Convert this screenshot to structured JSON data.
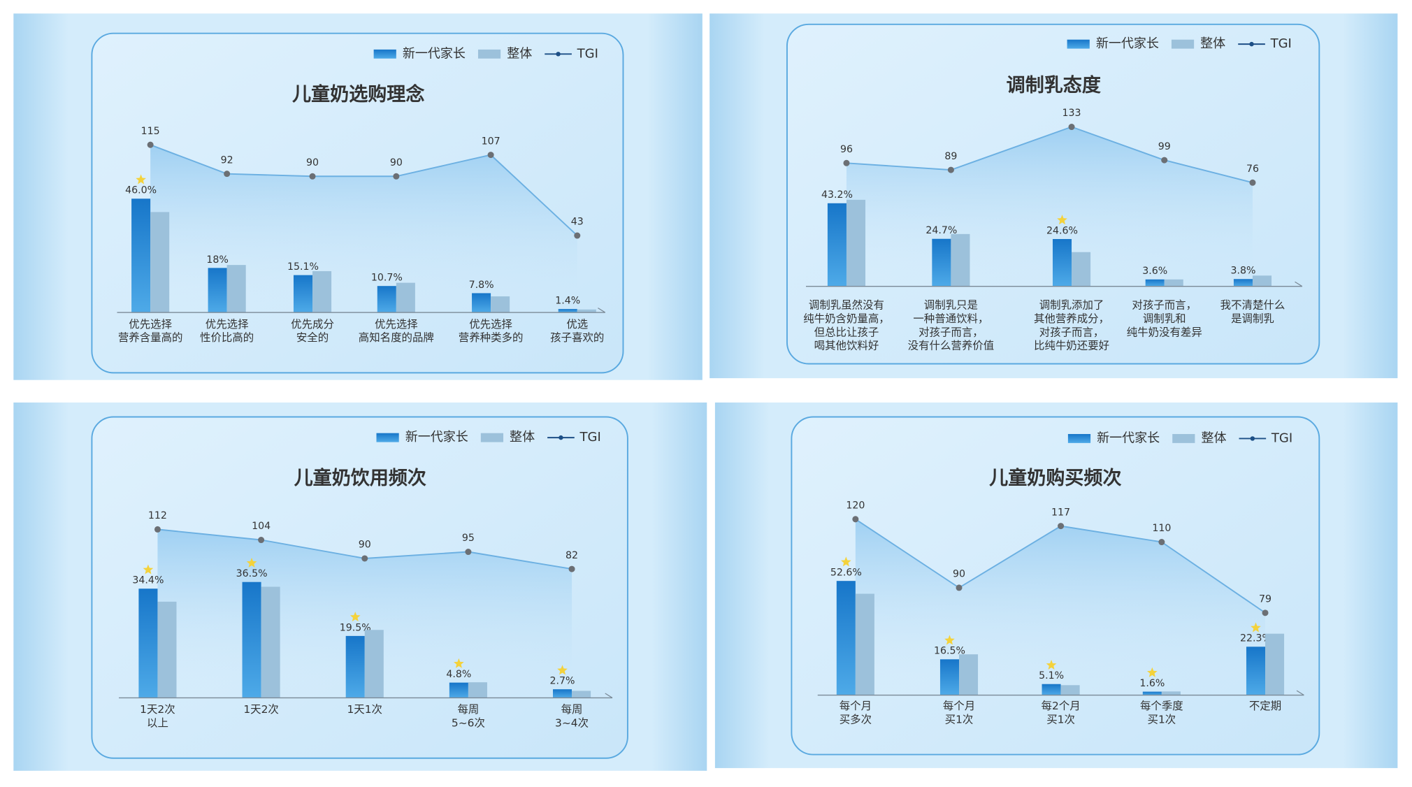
{
  "chart_data": [
    {
      "type": "bar",
      "title": "儿童奶选购理念",
      "categories": [
        "优先选择\n营养含量高的",
        "优先选择\n性价比高的",
        "优先成分\n安全的",
        "优先选择\n高知名度的品牌",
        "优先选择\n营养种类多的",
        "优选\n孩子喜欢的"
      ],
      "series": [
        {
          "name": "新一代家长",
          "color": "#1b82d2",
          "values": [
            46.0,
            18,
            15.1,
            10.7,
            7.8,
            1.4
          ],
          "value_labels": [
            "46.0%",
            "18%",
            "15.1%",
            "10.7%",
            "7.8%",
            "1.4%"
          ]
        },
        {
          "name": "整体",
          "color": "#9cc1db",
          "values": [
            40.6,
            19.2,
            16.7,
            12,
            6.5,
            1.2
          ]
        },
        {
          "name": "TGI",
          "color": "#6cb0e2",
          "axis": "y2",
          "values": [
            115,
            92,
            90,
            90,
            107,
            43
          ]
        }
      ],
      "starred": [
        0
      ],
      "ylim": [
        0,
        79
      ],
      "y2lim": [
        -18,
        137
      ]
    },
    {
      "type": "bar",
      "title": "调制乳态度",
      "categories": [
        "调制乳虽然没有\n纯牛奶含奶量高，\n但总比让孩子\n喝其他饮料好",
        "调制乳只是\n一种普通饮料，\n对孩子而言，\n没有什么营养价值",
        "调制乳添加了\n其他营养成分，\n对孩子而言，\n比纯牛奶还要好",
        "对孩子而言，\n调制乳和\n纯牛奶没有差异",
        "我不清楚什么\n是调制乳"
      ],
      "series": [
        {
          "name": "新一代家长",
          "color": "#1b82d2",
          "values": [
            43.2,
            24.7,
            24.6,
            3.6,
            3.8
          ],
          "value_labels": [
            "43.2%",
            "24.7%",
            "24.6%",
            "3.6%",
            "3.8%"
          ]
        },
        {
          "name": "整体",
          "color": "#9cc1db",
          "values": [
            45,
            27.2,
            17.8,
            3.6,
            5.6
          ]
        },
        {
          "name": "TGI",
          "color": "#6cb0e2",
          "axis": "y2",
          "values": [
            96,
            89,
            133,
            99,
            76
          ]
        }
      ],
      "starred": [
        2
      ],
      "ylim": [
        0,
        88
      ],
      "y2lim": [
        -30,
        143
      ]
    },
    {
      "type": "bar",
      "title": "儿童奶饮用频次",
      "categories": [
        "1天2次\n以上",
        "1天2次",
        "1天1次",
        "每周\n5~6次",
        "每周\n3~4次"
      ],
      "series": [
        {
          "name": "新一代家长",
          "color": "#1b82d2",
          "values": [
            34.4,
            36.5,
            19.5,
            4.8,
            2.7
          ],
          "value_labels": [
            "34.4%",
            "36.5%",
            "19.5%",
            "4.8%",
            "2.7%"
          ]
        },
        {
          "name": "整体",
          "color": "#9cc1db",
          "values": [
            30.3,
            35.0,
            21.4,
            4.9,
            2.2
          ]
        },
        {
          "name": "TGI",
          "color": "#6cb0e2",
          "axis": "y2",
          "values": [
            112,
            104,
            90,
            95,
            82
          ]
        }
      ],
      "starred": [
        0,
        1,
        2,
        3,
        4
      ],
      "ylim": [
        0,
        61
      ],
      "y2lim": [
        -15.5,
        131
      ]
    },
    {
      "type": "bar",
      "title": "儿童奶购买频次",
      "categories": [
        "每个月\n买多次",
        "每个月\n买1次",
        "每2个月\n买1次",
        "每个季度\n买1次",
        "不定期"
      ],
      "series": [
        {
          "name": "新一代家长",
          "color": "#1b82d2",
          "values": [
            52.6,
            16.5,
            5.1,
            1.6,
            22.3
          ],
          "value_labels": [
            "52.6%",
            "16.5%",
            "5.1%",
            "1.6%",
            "22.3%"
          ]
        },
        {
          "name": "整体",
          "color": "#9cc1db",
          "values": [
            46.7,
            18.8,
            4.6,
            1.7,
            28.3
          ]
        },
        {
          "name": "TGI",
          "color": "#6cb0e2",
          "axis": "y2",
          "values": [
            120,
            90,
            117,
            110,
            79
          ]
        }
      ],
      "starred": [
        0,
        1,
        2,
        3,
        4
      ],
      "ylim": [
        0,
        90
      ],
      "y2lim": [
        43,
        128.5
      ]
    }
  ]
}
